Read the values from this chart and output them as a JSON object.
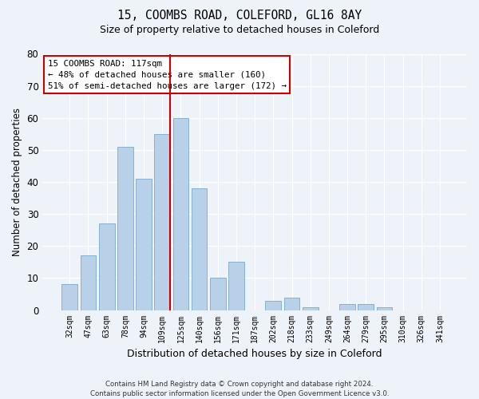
{
  "title1": "15, COOMBS ROAD, COLEFORD, GL16 8AY",
  "title2": "Size of property relative to detached houses in Coleford",
  "xlabel": "Distribution of detached houses by size in Coleford",
  "ylabel": "Number of detached properties",
  "categories": [
    "32sqm",
    "47sqm",
    "63sqm",
    "78sqm",
    "94sqm",
    "109sqm",
    "125sqm",
    "140sqm",
    "156sqm",
    "171sqm",
    "187sqm",
    "202sqm",
    "218sqm",
    "233sqm",
    "249sqm",
    "264sqm",
    "279sqm",
    "295sqm",
    "310sqm",
    "326sqm",
    "341sqm"
  ],
  "values": [
    8,
    17,
    27,
    51,
    41,
    55,
    60,
    38,
    10,
    15,
    0,
    3,
    4,
    1,
    0,
    2,
    2,
    1,
    0,
    0,
    0
  ],
  "bar_color": "#b8d0e8",
  "bar_edge_color": "#7aaacb",
  "vline_color": "#cc0000",
  "annotation_title": "15 COOMBS ROAD: 117sqm",
  "annotation_line1": "← 48% of detached houses are smaller (160)",
  "annotation_line2": "51% of semi-detached houses are larger (172) →",
  "annotation_box_color": "#ffffff",
  "annotation_box_edge": "#cc0000",
  "ylim": [
    0,
    80
  ],
  "yticks": [
    0,
    10,
    20,
    30,
    40,
    50,
    60,
    70,
    80
  ],
  "footer1": "Contains HM Land Registry data © Crown copyright and database right 2024.",
  "footer2": "Contains public sector information licensed under the Open Government Licence v3.0.",
  "bg_color": "#eef2f9",
  "plot_bg_color": "#eef2f9"
}
